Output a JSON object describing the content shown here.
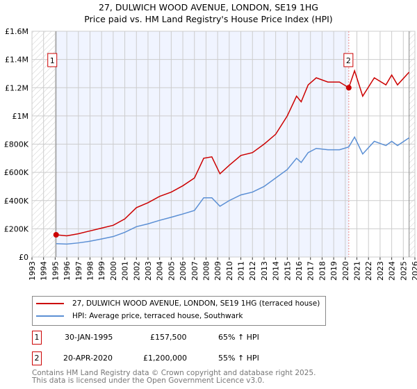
{
  "chart_data": {
    "type": "line",
    "title": "27, DULWICH WOOD AVENUE, LONDON, SE19 1HG",
    "subtitle": "Price paid vs. HM Land Registry's House Price Index (HPI)",
    "xlim": [
      1993,
      2026
    ],
    "ylim": [
      0,
      1600000
    ],
    "x_ticks": [
      "1993",
      "1994",
      "1995",
      "1996",
      "1997",
      "1998",
      "1999",
      "2000",
      "2001",
      "2002",
      "2003",
      "2004",
      "2005",
      "2006",
      "2007",
      "2008",
      "2009",
      "2010",
      "2011",
      "2012",
      "2013",
      "2014",
      "2015",
      "2016",
      "2017",
      "2018",
      "2019",
      "2020",
      "2021",
      "2022",
      "2023",
      "2024",
      "2025",
      "2026"
    ],
    "y_ticks": [
      {
        "v": 0,
        "l": "£0"
      },
      {
        "v": 200000,
        "l": "£200K"
      },
      {
        "v": 400000,
        "l": "£400K"
      },
      {
        "v": 600000,
        "l": "£600K"
      },
      {
        "v": 800000,
        "l": "£800K"
      },
      {
        "v": 1000000,
        "l": "£1M"
      },
      {
        "v": 1200000,
        "l": "£1.2M"
      },
      {
        "v": 1400000,
        "l": "£1.4M"
      },
      {
        "v": 1600000,
        "l": "£1.6M"
      }
    ],
    "series": [
      {
        "name": "27, DULWICH WOOD AVENUE, LONDON, SE19 1HG (terraced house)",
        "color": "#cc0000",
        "x": [
          1995.08,
          1996,
          1997,
          1998,
          1999,
          2000,
          2001,
          2002,
          2003,
          2004,
          2005,
          2006,
          2007,
          2007.8,
          2008.5,
          2009.2,
          2010,
          2011,
          2012,
          2013,
          2014,
          2015,
          2015.8,
          2016.2,
          2016.8,
          2017.5,
          2018.5,
          2019.5,
          2020.3,
          2020.8,
          2021.5,
          2022.5,
          2023.5,
          2024,
          2024.5,
          2025.5
        ],
        "values": [
          157500,
          150000,
          165000,
          185000,
          205000,
          225000,
          270000,
          350000,
          385000,
          430000,
          460000,
          505000,
          560000,
          700000,
          710000,
          590000,
          650000,
          720000,
          740000,
          800000,
          870000,
          1000000,
          1140000,
          1100000,
          1220000,
          1270000,
          1240000,
          1240000,
          1200000,
          1320000,
          1140000,
          1270000,
          1220000,
          1290000,
          1220000,
          1310000
        ]
      },
      {
        "name": "HPI: Average price, terraced house, Southwark",
        "color": "#5b8fd4",
        "x": [
          1995.08,
          1996,
          1997,
          1998,
          1999,
          2000,
          2001,
          2002,
          2003,
          2004,
          2005,
          2006,
          2007,
          2007.8,
          2008.5,
          2009.2,
          2010,
          2011,
          2012,
          2013,
          2014,
          2015,
          2015.8,
          2016.2,
          2016.8,
          2017.5,
          2018.5,
          2019.5,
          2020.3,
          2020.8,
          2021.5,
          2022.5,
          2023.5,
          2024,
          2024.5,
          2025.5
        ],
        "values": [
          95000,
          92000,
          100000,
          112000,
          128000,
          145000,
          175000,
          215000,
          235000,
          260000,
          282000,
          305000,
          330000,
          420000,
          420000,
          360000,
          400000,
          440000,
          460000,
          500000,
          560000,
          620000,
          700000,
          670000,
          740000,
          770000,
          760000,
          760000,
          780000,
          850000,
          730000,
          820000,
          790000,
          820000,
          790000,
          845000
        ]
      }
    ],
    "sales": [
      {
        "label": "1",
        "x": 1995.08,
        "value": 157500,
        "date": "30-JAN-1995",
        "price": "£157,500",
        "hpi": "65% ↑ HPI"
      },
      {
        "label": "2",
        "x": 2020.3,
        "value": 1200000,
        "date": "20-APR-2020",
        "price": "£1,200,000",
        "hpi": "55% ↑ HPI"
      }
    ]
  },
  "legend": [
    "27, DULWICH WOOD AVENUE, LONDON, SE19 1HG (terraced house)",
    "HPI: Average price, terraced house, Southwark"
  ],
  "footer": [
    "Contains HM Land Registry data © Crown copyright and database right 2025.",
    "This data is licensed under the Open Government Licence v3.0."
  ]
}
